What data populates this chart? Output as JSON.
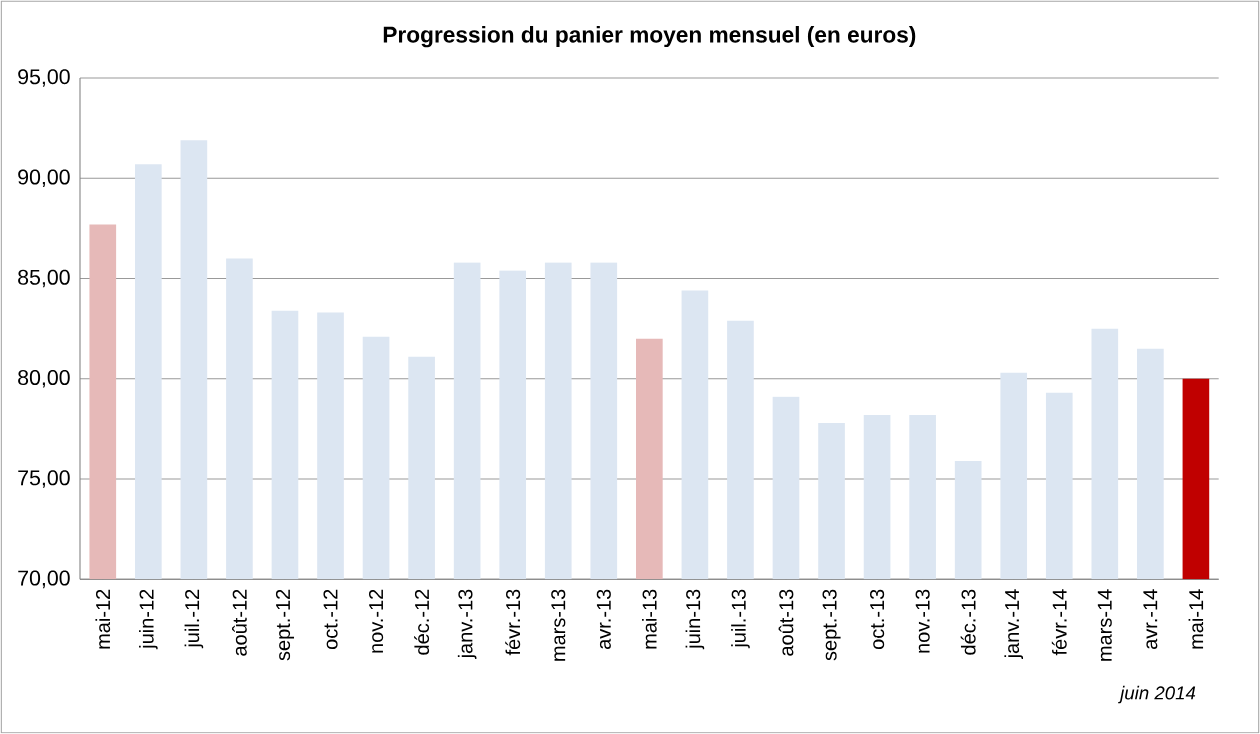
{
  "chart_data": {
    "type": "bar",
    "title": "Progression du panier moyen mensuel (en euros)",
    "categories": [
      "mai-12",
      "juin-12",
      "juil.-12",
      "août-12",
      "sept.-12",
      "oct.-12",
      "nov.-12",
      "déc.-12",
      "janv.-13",
      "févr.-13",
      "mars-13",
      "avr.-13",
      "mai-13",
      "juin-13",
      "juil.-13",
      "août-13",
      "sept.-13",
      "oct.-13",
      "nov.-13",
      "déc.-13",
      "janv.-14",
      "févr.-14",
      "mars-14",
      "avr.-14",
      "mai-14"
    ],
    "values": [
      87.7,
      90.7,
      91.9,
      86.0,
      83.4,
      83.3,
      82.1,
      81.1,
      85.8,
      85.4,
      85.8,
      85.8,
      82.0,
      84.4,
      82.9,
      79.1,
      77.8,
      78.2,
      78.2,
      75.9,
      80.3,
      79.3,
      82.5,
      81.5,
      80.0
    ],
    "colors": [
      "#e6b9b8",
      "#dce6f2",
      "#dce6f2",
      "#dce6f2",
      "#dce6f2",
      "#dce6f2",
      "#dce6f2",
      "#dce6f2",
      "#dce6f2",
      "#dce6f2",
      "#dce6f2",
      "#dce6f2",
      "#e6b9b8",
      "#dce6f2",
      "#dce6f2",
      "#dce6f2",
      "#dce6f2",
      "#dce6f2",
      "#dce6f2",
      "#dce6f2",
      "#dce6f2",
      "#dce6f2",
      "#dce6f2",
      "#dce6f2",
      "#c00000"
    ],
    "ylim": [
      70,
      95
    ],
    "yticks": [
      {
        "value": 70,
        "label": "70,00"
      },
      {
        "value": 75,
        "label": "75,00"
      },
      {
        "value": 80,
        "label": "80,00"
      },
      {
        "value": 85,
        "label": "85,00"
      },
      {
        "value": 90,
        "label": "90,00"
      },
      {
        "value": 95,
        "label": "95,00"
      }
    ],
    "grid": "y",
    "annotations": [
      "juin 2014"
    ]
  }
}
